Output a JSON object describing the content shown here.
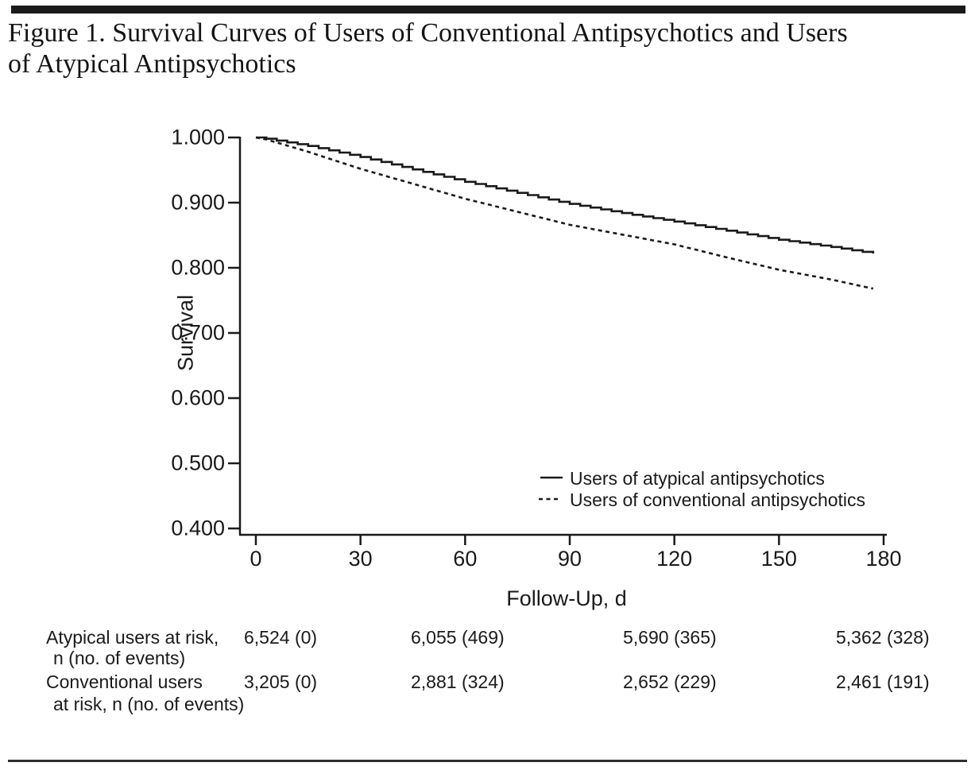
{
  "figure": {
    "title_line1": "Figure 1. Survival Curves of Users of Conventional Antipsychotics and Users",
    "title_line2": "of Atypical Antipsychotics"
  },
  "chart_data": {
    "type": "line",
    "title": "",
    "xlabel": "Follow-Up, d",
    "ylabel": "Survival",
    "xlim": [
      0,
      180
    ],
    "ylim": [
      0.4,
      1.0
    ],
    "x_ticks": [
      "0",
      "30",
      "60",
      "90",
      "120",
      "150",
      "180"
    ],
    "x_tick_values": [
      0,
      30,
      60,
      90,
      120,
      150,
      180
    ],
    "y_ticks": [
      "1.000",
      "0.900",
      "0.800",
      "0.700",
      "0.600",
      "0.500",
      "0.400"
    ],
    "y_tick_values": [
      1.0,
      0.9,
      0.8,
      0.7,
      0.6,
      0.5,
      0.4
    ],
    "grid": false,
    "legend_position": "inside-lower-right",
    "x_days": [
      0,
      3,
      15,
      30,
      45,
      60,
      75,
      90,
      105,
      120,
      135,
      150,
      165,
      177
    ],
    "series": [
      {
        "name": "Users of atypical antipsychotics",
        "line_style": "solid",
        "color": "#1a1a1a",
        "values": [
          1.0,
          0.998,
          0.987,
          0.97,
          0.951,
          0.932,
          0.915,
          0.898,
          0.884,
          0.871,
          0.857,
          0.843,
          0.832,
          0.822
        ]
      },
      {
        "name": "Users of conventional antipsychotics",
        "line_style": "dashed",
        "color": "#1a1a1a",
        "values": [
          1.0,
          0.997,
          0.978,
          0.952,
          0.929,
          0.906,
          0.886,
          0.866,
          0.851,
          0.836,
          0.816,
          0.797,
          0.782,
          0.768
        ]
      }
    ]
  },
  "at_risk": {
    "rows": [
      {
        "label_line1": "Atypical users at risk,",
        "label_line2": "n (no. of events)",
        "values": [
          "6,524 (0)",
          "6,055 (469)",
          "5,690 (365)",
          "5,362 (328)"
        ]
      },
      {
        "label_line1": "Conventional users",
        "label_line2": "at risk, n (no. of events)",
        "values": [
          "3,205 (0)",
          "2,881 (324)",
          "2,652 (229)",
          "2,461 (191)"
        ]
      }
    ]
  },
  "colors": {
    "ink": "#1a1a1a"
  }
}
